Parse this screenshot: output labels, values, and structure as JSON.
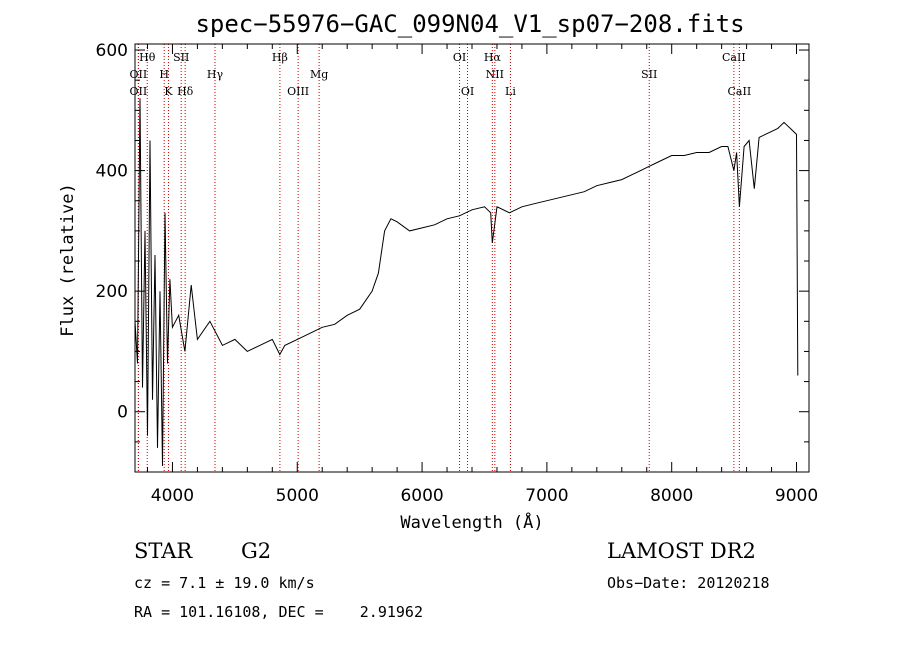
{
  "chart_data": {
    "type": "line",
    "title": "spec−55976−GAC_099N04_V1_sp07−208.fits",
    "xlabel": "Wavelength (Å)",
    "ylabel": "Flux (relative)",
    "xlim": [
      3700,
      9100
    ],
    "ylim": [
      -100,
      610
    ],
    "xticks": [
      4000,
      5000,
      6000,
      7000,
      8000,
      9000
    ],
    "yticks": [
      0,
      200,
      400,
      600
    ],
    "grid": false,
    "series": [
      {
        "x": [
          3700,
          3720,
          3740,
          3760,
          3780,
          3800,
          3820,
          3840,
          3860,
          3880,
          3900,
          3920,
          3940,
          3960,
          3980,
          4000,
          4050,
          4100,
          4150,
          4200,
          4300,
          4400,
          4500,
          4600,
          4700,
          4800,
          4860,
          4900,
          5000,
          5100,
          5200,
          5300,
          5400,
          5500,
          5600,
          5650,
          5700,
          5750,
          5800,
          5900,
          6000,
          6100,
          6200,
          6300,
          6400,
          6500,
          6550,
          6563,
          6600,
          6700,
          6800,
          6900,
          7000,
          7100,
          7200,
          7300,
          7400,
          7500,
          7600,
          7700,
          7800,
          7900,
          8000,
          8100,
          8200,
          8300,
          8400,
          8450,
          8498,
          8520,
          8542,
          8580,
          8620,
          8662,
          8700,
          8750,
          8800,
          8850,
          8900,
          8950,
          9000,
          9010
        ],
        "y": [
          150,
          80,
          520,
          40,
          300,
          -40,
          450,
          20,
          260,
          -60,
          200,
          -90,
          330,
          80,
          220,
          140,
          160,
          100,
          210,
          120,
          150,
          110,
          120,
          100,
          110,
          120,
          95,
          110,
          120,
          130,
          140,
          145,
          160,
          170,
          200,
          230,
          300,
          320,
          315,
          300,
          305,
          310,
          320,
          325,
          335,
          340,
          330,
          280,
          340,
          330,
          340,
          345,
          350,
          355,
          360,
          365,
          375,
          380,
          385,
          395,
          405,
          415,
          425,
          425,
          430,
          430,
          440,
          440,
          400,
          430,
          340,
          440,
          450,
          370,
          455,
          460,
          465,
          470,
          480,
          470,
          460,
          60
        ]
      }
    ],
    "spectral_lines": [
      {
        "label": "OⅠⅠ",
        "wavelength": 3727,
        "row": 1
      },
      {
        "label": "OⅠⅠ",
        "wavelength": 3727,
        "row": 3
      },
      {
        "label": "Hθ",
        "wavelength": 3798,
        "row": 0
      },
      {
        "label": "H",
        "wavelength": 3934,
        "row": 2
      },
      {
        "label": "K",
        "wavelength": 3968,
        "row": 3
      },
      {
        "label": "SⅠⅠ",
        "wavelength": 4070,
        "row": 0
      },
      {
        "label": "Hδ",
        "wavelength": 4102,
        "row": 3
      },
      {
        "label": "Hγ",
        "wavelength": 4341,
        "row": 2
      },
      {
        "label": "Hβ",
        "wavelength": 4861,
        "row": 0
      },
      {
        "label": "OⅠⅠⅠ",
        "wavelength": 5007,
        "row": 3
      },
      {
        "label": "Mg",
        "wavelength": 5175,
        "row": 2
      },
      {
        "label": "OⅠ",
        "wavelength": 6300,
        "row": 0
      },
      {
        "label": "OⅠ",
        "wavelength": 6364,
        "row": 3
      },
      {
        "label": "Hα",
        "wavelength": 6563,
        "row": 0
      },
      {
        "label": "NⅠⅠ",
        "wavelength": 6583,
        "row": 2
      },
      {
        "label": "Li",
        "wavelength": 6708,
        "row": 3
      },
      {
        "label": "SⅠⅠ",
        "wavelength": 7820,
        "row": 2
      },
      {
        "label": "CaⅠⅠ",
        "wavelength": 8498,
        "row": 0
      },
      {
        "label": "CaⅠⅠ",
        "wavelength": 8542,
        "row": 3
      }
    ],
    "colors": {
      "line": "#000000",
      "marker_lines": "#cc0000"
    }
  },
  "info": {
    "object_type": "STAR",
    "subclass": "G2",
    "survey": "LAMOST DR2",
    "cz": "cz = 7.1 ± 19.0 km/s",
    "obs_date": "Obs−Date: 20120218",
    "coords": "RA = 101.16108, DEC =    2.91962"
  }
}
